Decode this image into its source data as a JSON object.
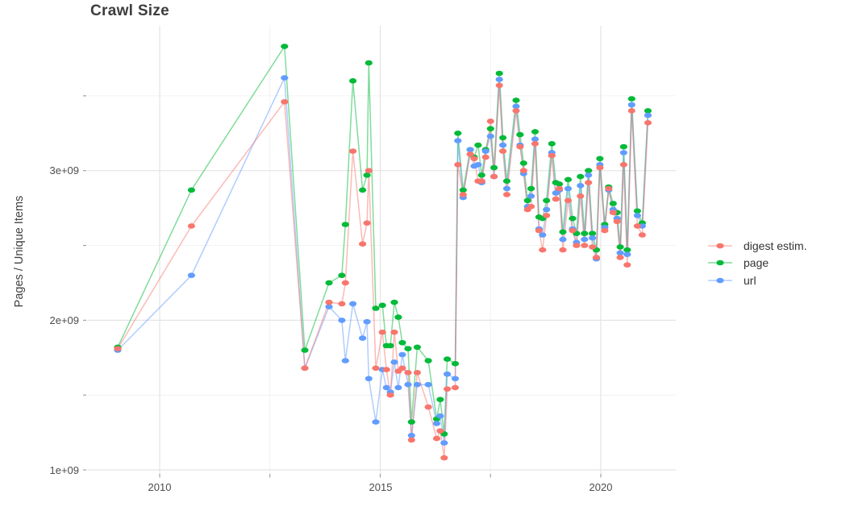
{
  "title": "Crawl Size",
  "y_axis_title": "Pages / Unique Items",
  "chart_data": {
    "type": "line",
    "title": "Crawl Size",
    "xlabel": "",
    "ylabel": "Pages / Unique Items",
    "grid": true,
    "legend_position": "right",
    "x_tick_labels": [
      "2010",
      "2015",
      "2020"
    ],
    "x_tick_values": [
      2010,
      2015,
      2020
    ],
    "x_minor_gridlines": [
      2012.5,
      2017.5
    ],
    "y_tick_labels": [
      "1e+09",
      "2e+09",
      "3e+09"
    ],
    "y_tick_values_billions": [
      1,
      2,
      3
    ],
    "y_minor_gridlines_billions": [
      1.5,
      2.5,
      3.5
    ],
    "xlim": [
      2008.45,
      2021.7
    ],
    "ylim_billions": [
      0.95,
      3.97
    ],
    "unit_multiplier": 1000000000.0,
    "grid_major_color": "#e4e4e4",
    "grid_minor_color": "#efefef",
    "x": [
      2009.05,
      2010.72,
      2012.83,
      2013.29,
      2013.84,
      2014.13,
      2014.21,
      2014.38,
      2014.6,
      2014.7,
      2014.74,
      2014.9,
      2015.05,
      2015.14,
      2015.23,
      2015.32,
      2015.41,
      2015.5,
      2015.63,
      2015.71,
      2015.84,
      2016.09,
      2016.28,
      2016.36,
      2016.45,
      2016.52,
      2016.7,
      2016.76,
      2016.88,
      2017.04,
      2017.13,
      2017.22,
      2017.3,
      2017.39,
      2017.5,
      2017.58,
      2017.7,
      2017.78,
      2017.87,
      2018.08,
      2018.17,
      2018.25,
      2018.34,
      2018.42,
      2018.51,
      2018.6,
      2018.68,
      2018.77,
      2018.89,
      2018.98,
      2019.06,
      2019.14,
      2019.26,
      2019.36,
      2019.45,
      2019.54,
      2019.63,
      2019.72,
      2019.81,
      2019.9,
      2019.98,
      2020.09,
      2020.18,
      2020.28,
      2020.37,
      2020.44,
      2020.52,
      2020.6,
      2020.7,
      2020.83,
      2020.94,
      2021.07
    ],
    "series": [
      {
        "name": "digest estim.",
        "color": "#F8766D",
        "values_billions": [
          1.81,
          2.63,
          3.46,
          1.68,
          2.12,
          2.11,
          2.25,
          3.13,
          2.51,
          2.65,
          3.0,
          1.68,
          1.92,
          1.67,
          1.5,
          1.92,
          1.66,
          1.68,
          1.65,
          1.2,
          1.65,
          1.42,
          1.21,
          1.26,
          1.08,
          1.54,
          1.55,
          3.04,
          2.84,
          3.11,
          3.08,
          2.93,
          2.93,
          3.09,
          3.33,
          2.96,
          3.57,
          3.13,
          2.84,
          3.4,
          3.16,
          3.0,
          2.74,
          2.76,
          3.18,
          2.6,
          2.47,
          2.7,
          3.1,
          2.81,
          2.88,
          2.47,
          2.8,
          2.6,
          2.5,
          2.83,
          2.5,
          2.92,
          2.49,
          2.42,
          3.02,
          2.6,
          2.88,
          2.72,
          2.66,
          2.42,
          3.04,
          2.37,
          3.4,
          2.63,
          2.57,
          3.32
        ]
      },
      {
        "name": "page",
        "color": "#00BA38",
        "values_billions": [
          1.82,
          2.87,
          3.83,
          1.8,
          2.25,
          2.3,
          2.64,
          3.6,
          2.87,
          2.97,
          3.72,
          2.08,
          2.1,
          1.83,
          1.83,
          2.12,
          2.02,
          1.85,
          1.81,
          1.32,
          1.82,
          1.73,
          1.34,
          1.47,
          1.24,
          1.74,
          1.71,
          3.25,
          2.87,
          3.14,
          3.09,
          3.17,
          2.97,
          3.14,
          3.28,
          3.02,
          3.65,
          3.22,
          2.93,
          3.47,
          3.24,
          3.05,
          2.8,
          2.88,
          3.26,
          2.69,
          2.68,
          2.8,
          3.18,
          2.92,
          2.91,
          2.59,
          2.94,
          2.68,
          2.58,
          2.96,
          2.58,
          3.0,
          2.58,
          2.47,
          3.08,
          2.64,
          2.89,
          2.78,
          2.72,
          2.49,
          3.16,
          2.47,
          3.48,
          2.73,
          2.65,
          3.4
        ]
      },
      {
        "name": "url",
        "color": "#619CFF",
        "values_billions": [
          1.8,
          2.3,
          3.62,
          1.68,
          2.09,
          2.0,
          1.73,
          2.11,
          1.88,
          1.99,
          1.61,
          1.32,
          1.67,
          1.55,
          1.52,
          1.72,
          1.55,
          1.77,
          1.57,
          1.23,
          1.57,
          1.57,
          1.31,
          1.36,
          1.18,
          1.64,
          1.61,
          3.2,
          2.82,
          3.14,
          3.03,
          3.04,
          2.92,
          3.13,
          3.23,
          2.96,
          3.61,
          3.17,
          2.88,
          3.43,
          3.17,
          2.98,
          2.76,
          2.83,
          3.21,
          2.61,
          2.57,
          2.74,
          3.12,
          2.85,
          2.87,
          2.54,
          2.88,
          2.61,
          2.52,
          2.9,
          2.54,
          2.97,
          2.55,
          2.41,
          3.04,
          2.62,
          2.87,
          2.74,
          2.68,
          2.45,
          3.12,
          2.44,
          3.44,
          2.7,
          2.63,
          3.37
        ]
      }
    ]
  },
  "legend": {
    "items": [
      {
        "label": "digest estim."
      },
      {
        "label": "page"
      },
      {
        "label": "url"
      }
    ]
  }
}
